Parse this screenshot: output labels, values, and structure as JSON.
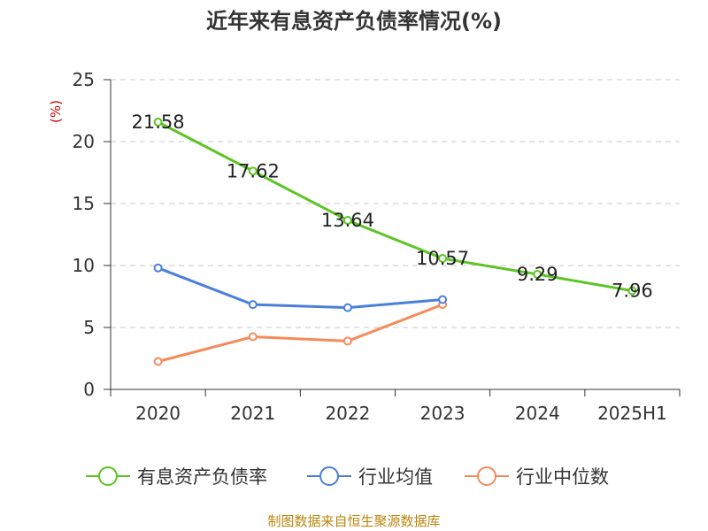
{
  "chart_data": {
    "type": "line",
    "title": "近年来有息资产负债率情况(%)",
    "ylabel": "(%)",
    "categories": [
      "2020",
      "2021",
      "2022",
      "2023",
      "2024",
      "2025H1"
    ],
    "ylim": [
      0,
      25
    ],
    "yticks": [
      0,
      5,
      10,
      15,
      20,
      25
    ],
    "grid": true,
    "legend_position": "bottom",
    "series": [
      {
        "name": "有息资产负债率",
        "color": "#5cc424",
        "values": [
          21.58,
          17.62,
          13.64,
          10.57,
          9.29,
          7.96
        ],
        "data_labels": [
          "21.58",
          "17.62",
          "13.64",
          "10.57",
          "9.29",
          "7.96"
        ]
      },
      {
        "name": "行业均值",
        "color": "#4a7fdc",
        "values": [
          9.8,
          6.85,
          6.6,
          7.25,
          null,
          null
        ]
      },
      {
        "name": "行业中位数",
        "color": "#f58a5a",
        "values": [
          2.25,
          4.25,
          3.9,
          6.85,
          null,
          null
        ]
      }
    ]
  },
  "source_text": "制图数据来自恒生聚源数据库"
}
